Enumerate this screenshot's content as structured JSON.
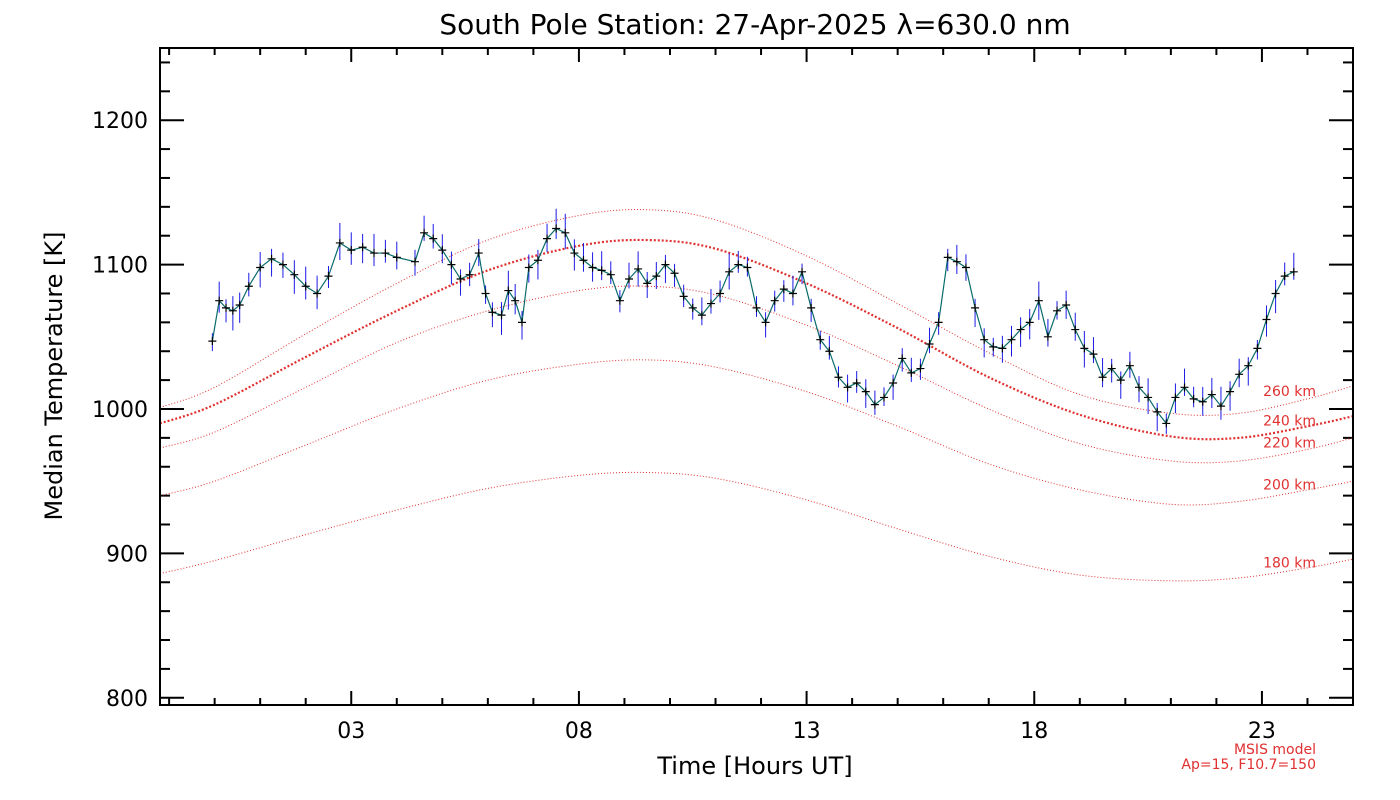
{
  "chart_data": {
    "type": "line",
    "title": "South Pole Station: 27-Apr-2025 λ=630.0 nm",
    "xlabel": "Time [Hours UT]",
    "ylabel": "Median Temperature [K]",
    "xlim": [
      -1.2,
      25.0
    ],
    "ylim": [
      795,
      1250
    ],
    "x_ticks": [
      3,
      8,
      13,
      18,
      23
    ],
    "x_tick_labels": [
      "03",
      "08",
      "13",
      "18",
      "23"
    ],
    "y_ticks": [
      800,
      900,
      1000,
      1100,
      1200
    ],
    "y_tick_labels": [
      "800",
      "900",
      "1000",
      "1100",
      "1200"
    ],
    "grid": false,
    "colors": {
      "data_line": "#0a6b6b",
      "error_bars": "#1a1ae6",
      "markers": "#000000",
      "model": "#e03030"
    },
    "series": [
      {
        "x": [
          -0.05,
          0.1,
          0.25,
          0.4,
          0.55,
          0.75,
          1.0,
          1.25,
          1.5,
          1.75,
          2.0,
          2.25,
          2.5,
          2.75,
          3.0,
          3.25,
          3.5,
          3.75,
          4.0,
          4.4,
          4.6,
          4.8,
          5.0,
          5.2,
          5.4,
          5.6,
          5.8,
          5.95,
          6.1,
          6.3,
          6.45,
          6.6,
          6.75,
          6.9,
          7.1,
          7.3,
          7.5,
          7.7,
          7.9,
          8.1,
          8.3,
          8.5,
          8.7,
          8.9,
          9.1,
          9.3,
          9.5,
          9.7,
          9.9,
          10.1,
          10.3,
          10.5,
          10.7,
          10.9,
          11.1,
          11.3,
          11.5,
          11.7,
          11.9,
          12.1,
          12.3,
          12.5,
          12.7,
          12.9,
          13.1,
          13.3,
          13.5,
          13.7,
          13.9,
          14.1,
          14.3,
          14.5,
          14.7,
          14.9,
          15.1,
          15.3,
          15.5,
          15.7,
          15.9,
          16.1,
          16.3,
          16.5,
          16.7,
          16.9,
          17.1,
          17.3,
          17.5,
          17.7,
          17.9,
          18.1,
          18.3,
          18.5,
          18.7,
          18.9,
          19.1,
          19.3,
          19.5,
          19.7,
          19.9,
          20.1,
          20.3,
          20.5,
          20.7,
          20.9,
          21.1,
          21.3,
          21.5,
          21.7,
          21.9,
          22.1,
          22.3,
          22.5,
          22.7,
          22.9,
          23.1,
          23.3,
          23.5,
          23.7
        ],
        "y": [
          1047,
          1075,
          1070,
          1068,
          1072,
          1085,
          1098,
          1104,
          1100,
          1093,
          1085,
          1080,
          1092,
          1115,
          1110,
          1112,
          1108,
          1108,
          1105,
          1102,
          1122,
          1118,
          1110,
          1100,
          1090,
          1093,
          1108,
          1080,
          1067,
          1065,
          1082,
          1075,
          1060,
          1098,
          1103,
          1118,
          1125,
          1122,
          1108,
          1103,
          1098,
          1096,
          1093,
          1075,
          1090,
          1097,
          1087,
          1092,
          1100,
          1094,
          1078,
          1070,
          1065,
          1073,
          1080,
          1095,
          1100,
          1098,
          1070,
          1060,
          1075,
          1083,
          1080,
          1095,
          1070,
          1048,
          1040,
          1022,
          1015,
          1018,
          1012,
          1003,
          1008,
          1018,
          1035,
          1025,
          1028,
          1045,
          1060,
          1105,
          1102,
          1098,
          1070,
          1048,
          1043,
          1042,
          1048,
          1055,
          1060,
          1075,
          1050,
          1068,
          1072,
          1055,
          1042,
          1038,
          1022,
          1028,
          1020,
          1030,
          1015,
          1008,
          998,
          990,
          1008,
          1015,
          1007,
          1005,
          1010,
          1002,
          1012,
          1024,
          1030,
          1042,
          1062,
          1080,
          1092,
          1095
        ]
      }
    ],
    "model_curves": [
      {
        "label": "260 km",
        "x": [
          -1.2,
          0,
          2,
          4,
          6,
          8,
          9.5,
          11,
          13,
          15,
          17,
          19,
          21,
          22.5,
          24,
          25
        ],
        "y": [
          1001,
          1015,
          1052,
          1087,
          1117,
          1134,
          1138,
          1131,
          1106,
          1073,
          1039,
          1010,
          997,
          997,
          1007,
          1016
        ]
      },
      {
        "label": "240 km",
        "x": [
          -1.2,
          0,
          2,
          4,
          6,
          8,
          9.5,
          11,
          13,
          15,
          17,
          19,
          21,
          22.5,
          24,
          25
        ],
        "y": [
          990,
          1003,
          1036,
          1068,
          1096,
          1113,
          1117,
          1111,
          1087,
          1056,
          1022,
          996,
          981,
          980,
          988,
          995
        ]
      },
      {
        "label": "220 km",
        "x": [
          -1.2,
          0,
          2,
          4,
          6,
          8,
          9.5,
          11,
          13,
          15,
          17,
          19,
          21,
          22.5,
          24,
          25
        ],
        "y": [
          973,
          984,
          1015,
          1046,
          1068,
          1082,
          1085,
          1079,
          1058,
          1030,
          1000,
          976,
          964,
          964,
          972,
          980
        ]
      },
      {
        "label": "200 km",
        "x": [
          -1.2,
          0,
          2,
          4,
          6,
          8,
          9.5,
          11,
          13,
          15,
          17,
          19,
          21,
          22.5,
          24,
          25
        ],
        "y": [
          940,
          950,
          975,
          1000,
          1020,
          1031,
          1034,
          1029,
          1012,
          988,
          962,
          944,
          934,
          936,
          944,
          950
        ]
      },
      {
        "label": "180 km",
        "x": [
          -1.2,
          0,
          2,
          4,
          6,
          8,
          9.5,
          11,
          13,
          15,
          17,
          19,
          21,
          22.5,
          24,
          25
        ],
        "y": [
          886,
          895,
          913,
          930,
          945,
          954,
          956,
          952,
          937,
          917,
          898,
          885,
          881,
          883,
          890,
          896
        ]
      }
    ],
    "annotations": [
      "MSIS model",
      "Ap=15, F10.7=150"
    ]
  }
}
